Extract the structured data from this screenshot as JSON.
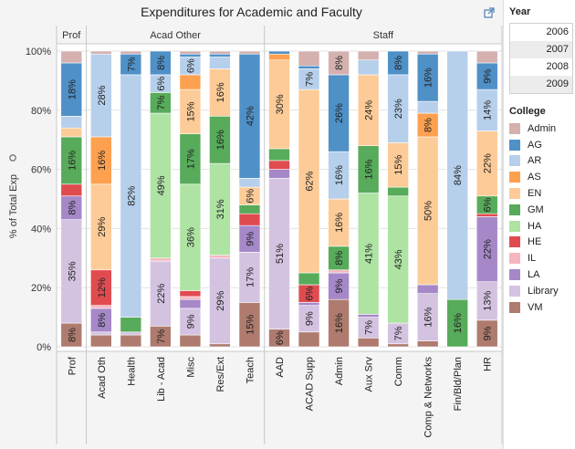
{
  "title": "Expenditures for Academic and Faculty",
  "sidebar": {
    "year_title": "Year",
    "years": [
      "2006",
      "2007",
      "2008",
      "2009"
    ],
    "college_title": "College"
  },
  "colors": {
    "Admin": "#d4b1af",
    "AG": "#4f90c7",
    "AR": "#b6cfeb",
    "AS": "#fda04f",
    "EN": "#fdcb97",
    "GM": "#57ab5a",
    "HA": "#aee3a3",
    "HE": "#e04b50",
    "IL": "#f6b6c0",
    "LA": "#a688c9",
    "Library": "#d3c3e0",
    "VM": "#ae7b6e"
  },
  "chart_data": {
    "type": "bar",
    "stacked": true,
    "normalized": true,
    "ylabel": "% of Total Exp",
    "ylim": [
      0,
      100
    ],
    "yticks": [
      "0%",
      "20%",
      "40%",
      "60%",
      "80%",
      "100%"
    ],
    "groups": [
      {
        "name": "Prof",
        "categories": [
          "Prof"
        ]
      },
      {
        "name": "Acad Other",
        "categories": [
          "Acad Oth",
          "Health",
          "Lib - Acad",
          "Misc",
          "Res/Ext",
          "Teach"
        ]
      },
      {
        "name": "Staff",
        "categories": [
          "AAD",
          "ACAD Supp",
          "Admin",
          "Aux Srv",
          "Comm",
          "Comp & Networks",
          "Fin/Bld/Plan",
          "HR"
        ]
      }
    ],
    "legend": [
      "Admin",
      "AG",
      "AR",
      "AS",
      "EN",
      "GM",
      "HA",
      "HE",
      "IL",
      "LA",
      "Library",
      "VM"
    ],
    "stack_order_bottom_to_top": [
      "VM",
      "Library",
      "LA",
      "IL",
      "HE",
      "HA",
      "GM",
      "EN",
      "AS",
      "AR",
      "AG",
      "Admin"
    ],
    "bars": [
      {
        "category": "Prof",
        "segments": {
          "VM": 8,
          "Library": 35,
          "LA": 8,
          "IL": 0,
          "HE": 4,
          "HA": 0,
          "GM": 16,
          "EN": 3,
          "AS": 0,
          "AR": 4,
          "AG": 18,
          "Admin": 4
        }
      },
      {
        "category": "Acad Oth",
        "segments": {
          "VM": 4,
          "Library": 1,
          "LA": 8,
          "IL": 1,
          "HE": 12,
          "HA": 0,
          "GM": 0,
          "EN": 29,
          "AS": 16,
          "AR": 28,
          "AG": 0,
          "Admin": 1
        }
      },
      {
        "category": "Health",
        "segments": {
          "VM": 4,
          "Library": 1,
          "LA": 0,
          "IL": 0,
          "HE": 0,
          "HA": 0,
          "GM": 5,
          "EN": 0,
          "AS": 0,
          "AR": 82,
          "AG": 7,
          "Admin": 1
        }
      },
      {
        "category": "Lib - Acad",
        "segments": {
          "VM": 7,
          "Library": 22,
          "LA": 0,
          "IL": 1,
          "HE": 0,
          "HA": 49,
          "GM": 7,
          "EN": 0,
          "AS": 0,
          "AR": 6,
          "AG": 8,
          "Admin": 0
        }
      },
      {
        "category": "Misc",
        "segments": {
          "VM": 4,
          "Library": 9,
          "LA": 3,
          "IL": 1,
          "HE": 2,
          "HA": 36,
          "GM": 17,
          "EN": 15,
          "AS": 5,
          "AR": 6,
          "AG": 1,
          "Admin": 1
        }
      },
      {
        "category": "Res/Ext",
        "segments": {
          "VM": 1,
          "Library": 29,
          "LA": 0,
          "IL": 1,
          "HE": 0,
          "HA": 31,
          "GM": 16,
          "EN": 16,
          "AS": 0,
          "AR": 4,
          "AG": 1,
          "Admin": 1
        }
      },
      {
        "category": "Teach",
        "segments": {
          "VM": 15,
          "Library": 17,
          "LA": 9,
          "IL": 0,
          "HE": 4,
          "HA": 0,
          "GM": 3,
          "EN": 6,
          "AS": 0,
          "AR": 3,
          "AG": 42,
          "Admin": 1
        }
      },
      {
        "category": "AAD",
        "segments": {
          "VM": 6,
          "Library": 51,
          "LA": 3,
          "IL": 0,
          "HE": 3,
          "HA": 0,
          "GM": 4,
          "EN": 30,
          "AS": 2,
          "AR": 0,
          "AG": 1,
          "Admin": 0
        }
      },
      {
        "category": "ACAD Supp",
        "segments": {
          "VM": 5,
          "Library": 9,
          "LA": 1,
          "IL": 0,
          "HE": 6,
          "HA": 0,
          "GM": 4,
          "EN": 62,
          "AS": 0,
          "AR": 7,
          "AG": 1,
          "Admin": 5
        }
      },
      {
        "category": "Admin",
        "segments": {
          "VM": 16,
          "Library": 0,
          "LA": 9,
          "IL": 1,
          "HE": 0,
          "HA": 0,
          "GM": 8,
          "EN": 16,
          "AS": 0,
          "AR": 16,
          "AG": 26,
          "Admin": 8
        }
      },
      {
        "category": "Aux Srv",
        "segments": {
          "VM": 3,
          "Library": 7,
          "LA": 1,
          "IL": 0,
          "HE": 0,
          "HA": 41,
          "GM": 16,
          "EN": 24,
          "AS": 0,
          "AR": 5,
          "AG": 0,
          "Admin": 3
        }
      },
      {
        "category": "Comm",
        "segments": {
          "VM": 1,
          "Library": 7,
          "LA": 0,
          "IL": 0,
          "HE": 0,
          "HA": 43,
          "GM": 3,
          "EN": 15,
          "AS": 0,
          "AR": 23,
          "AG": 8,
          "Admin": 0
        }
      },
      {
        "category": "Comp & Networks",
        "segments": {
          "VM": 2,
          "Library": 16,
          "LA": 3,
          "IL": 0,
          "HE": 0,
          "HA": 0,
          "GM": 0,
          "EN": 50,
          "AS": 8,
          "AR": 4,
          "AG": 16,
          "Admin": 1
        }
      },
      {
        "category": "Fin/Bld/Plan",
        "segments": {
          "VM": 0,
          "Library": 0,
          "LA": 0,
          "IL": 0,
          "HE": 0,
          "HA": 0,
          "GM": 16,
          "EN": 0,
          "AS": 0,
          "AR": 84,
          "AG": 0,
          "Admin": 0
        }
      },
      {
        "category": "HR",
        "segments": {
          "VM": 9,
          "Library": 13,
          "LA": 22,
          "IL": 0,
          "HE": 1,
          "HA": 0,
          "GM": 6,
          "EN": 22,
          "AS": 0,
          "AR": 14,
          "AG": 9,
          "Admin": 4
        }
      }
    ]
  }
}
